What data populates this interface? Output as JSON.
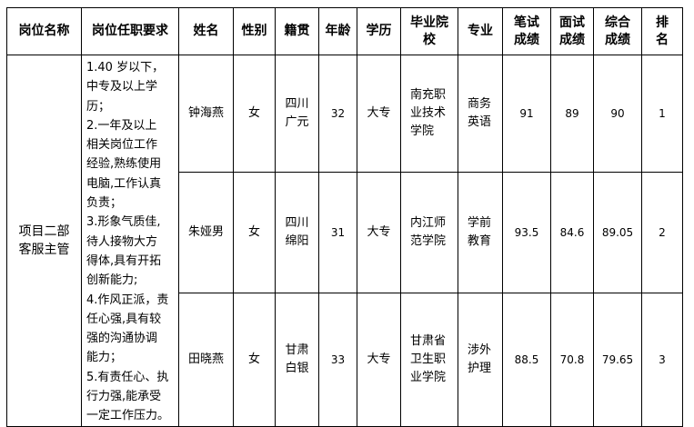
{
  "headers": [
    "岗位名称",
    "岗位任职要求",
    "姓名",
    "性别",
    "籍贯",
    "年龄",
    "学历",
    "毕业院校",
    "专业",
    "笔试成绩",
    "面试成绩",
    "综合成绩",
    "排名"
  ],
  "header_lines": [
    [
      "岗位名称"
    ],
    [
      "岗位任职要求"
    ],
    [
      "姓名"
    ],
    [
      "性别"
    ],
    [
      "籍贯"
    ],
    [
      "年龄"
    ],
    [
      "学历"
    ],
    [
      "毕业院",
      "校"
    ],
    [
      "专业"
    ],
    [
      "笔试",
      "成绩"
    ],
    [
      "面试",
      "成绩"
    ],
    [
      "综合",
      "成绩"
    ],
    [
      "排",
      "名"
    ]
  ],
  "position": "项目二部客服主管",
  "position_lines": [
    "项目二部",
    "客服主管"
  ],
  "requirements_lines": [
    "1.40 岁以下，",
    "中专及以上学",
    "历；",
    "2.一年及以上",
    "相关岗位工作",
    "经验,熟练使用",
    "电脑,工作认真",
    "负责；",
    "3.形象气质佳,",
    "待人接物大方",
    "得体,具有开拓",
    "创新能力;",
    "4.作风正派，责",
    "任心强,具有较",
    "强的沟通协调",
    "能力；",
    "5.有责任心、执",
    "行力强,能承受",
    "一定工作压力。"
  ],
  "rows": [
    {
      "name": "钟海燕",
      "gender": "女",
      "origin": [
        "四川",
        "广元"
      ],
      "age": "32",
      "education": "大专",
      "school": [
        "南充职",
        "业技术",
        "学院"
      ],
      "major": [
        "商务",
        "英语"
      ],
      "written": "91",
      "interview": "89",
      "total": "90",
      "rank": "1"
    },
    {
      "name": "朱娅男",
      "gender": "女",
      "origin": [
        "四川",
        "绵阳"
      ],
      "age": "31",
      "education": "大专",
      "school": [
        "内江师",
        "范学院"
      ],
      "major": [
        "学前",
        "教育"
      ],
      "written": "93.5",
      "interview": "84.6",
      "total": "89.05",
      "rank": "2"
    },
    {
      "name": "田晓燕",
      "gender": "女",
      "origin": [
        "甘肃",
        "白银"
      ],
      "age": "33",
      "education": "大专",
      "school": [
        "甘肃省",
        "卫生职",
        "业学院"
      ],
      "major": [
        "涉外",
        "护理"
      ],
      "written": "88.5",
      "interview": "70.8",
      "total": "79.65",
      "rank": "3"
    }
  ]
}
